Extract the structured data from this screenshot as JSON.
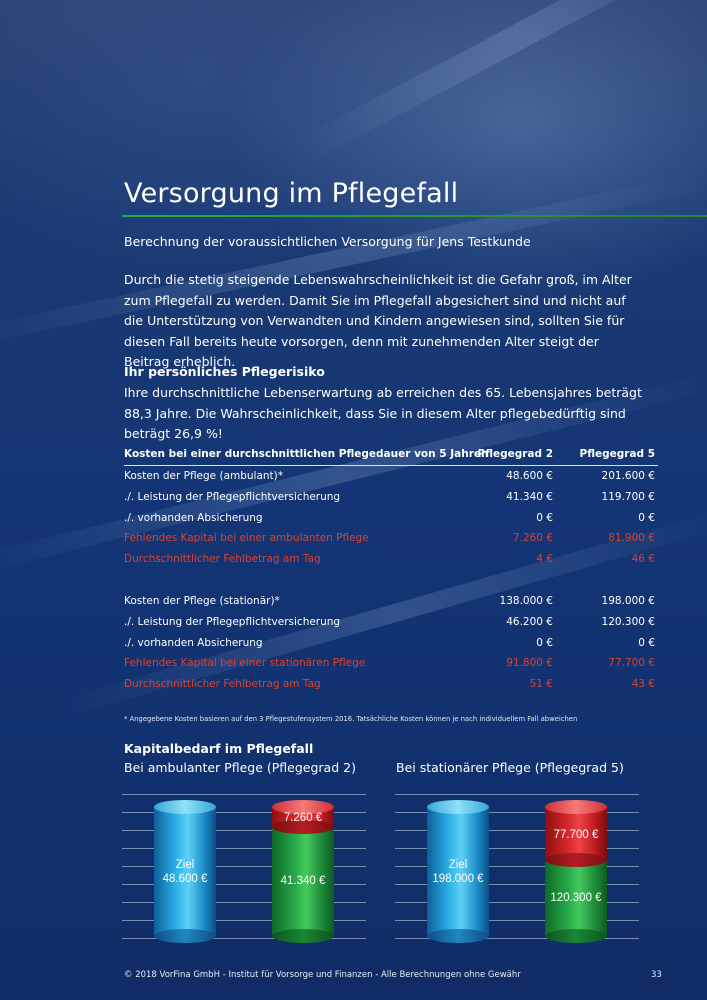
{
  "page": {
    "title": "Versorgung im Pflegefall",
    "subtitle": "Berechnung der voraussichtlichen Versorgung für Jens Testkunde",
    "intro": "Durch die stetig steigende Lebenswahrscheinlichkeit ist die Gefahr groß, im Alter zum Pflegefall zu werden. Damit Sie im Pflegefall abgesichert sind und nicht auf die Unterstützung von Verwandten und Kindern angewiesen sind, sollten Sie für diesen Fall bereits heute vorsorgen, denn mit zunehmenden Alter steigt der Beitrag erheblich."
  },
  "risk": {
    "heading": "Ihr persönliches Pflegerisiko",
    "text": "Ihre durchschnittliche Lebenserwartung ab erreichen des 65. Lebensjahres beträgt 88,3 Jahre. Die Wahrscheinlichkeit, dass Sie in diesem Alter pflegebedürftig sind beträgt 26,9 %!"
  },
  "table": {
    "header": {
      "label": "Kosten bei einer durchschnittlichen Pflegedauer von 5 Jahren",
      "col1": "Pflegegrad 2",
      "col2": "Pflegegrad 5"
    },
    "ambulant": [
      {
        "label": "Kosten der Pflege (ambulant)*",
        "v1": "48.600 €",
        "v2": "201.600 €"
      },
      {
        "label": "./. Leistung der Pflegepflichtversicherung",
        "v1": "41.340 €",
        "v2": "119.700 €"
      },
      {
        "label": "./. vorhanden Absicherung",
        "v1": "0 €",
        "v2": "0 €"
      },
      {
        "label": "Fehlendes Kapital bei einer ambulanten Pflege",
        "v1": "7.260 €",
        "v2": "81.900 €"
      },
      {
        "label": "Durchschnittlicher Fehlbetrag am Tag",
        "v1": "4 €",
        "v2": "46 €"
      }
    ],
    "stationaer": [
      {
        "label": "Kosten der Pflege (stationär)*",
        "v1": "138.000 €",
        "v2": "198.000 €"
      },
      {
        "label": "./. Leistung der Pflegepflichtversicherung",
        "v1": "46.200 €",
        "v2": "120.300 €"
      },
      {
        "label": "./. vorhanden Absicherung",
        "v1": "0 €",
        "v2": "0 €"
      },
      {
        "label": "Fehlendes Kapital bei einer stationären Pflege",
        "v1": "91.800 €",
        "v2": "77.700 €"
      },
      {
        "label": "Durchschnittlicher Fehlbetrag am Tag",
        "v1": "51 €",
        "v2": "43 €"
      }
    ],
    "red_color": "#d9432e",
    "footnote": "* Angegebene Kosten basieren auf den 3 Pflegestufensystem 2016. Tatsächliche Kosten können je nach individuellem Fall abweichen"
  },
  "kapital": {
    "heading": "Kapitalbedarf im Pflegefall"
  },
  "chart_data": [
    {
      "type": "bar",
      "title": "Bei ambulanter Pflege (Pflegegrad 2)",
      "ziel": {
        "label": "Ziel",
        "value": 48600,
        "text": "48.600 €"
      },
      "stack": [
        {
          "value": 41340,
          "text": "41.340 €",
          "color": "#25a546"
        },
        {
          "value": 7260,
          "text": "7.260 €",
          "color": "#d3252a"
        }
      ],
      "colors": {
        "ziel": "#2bb0e6"
      }
    },
    {
      "type": "bar",
      "title": "Bei stationärer Pflege (Pflegegrad 5)",
      "ziel": {
        "label": "Ziel",
        "value": 198000,
        "text": "198.000 €"
      },
      "stack": [
        {
          "value": 120300,
          "text": "120.300 €",
          "color": "#25a546"
        },
        {
          "value": 77700,
          "text": "77.700 €",
          "color": "#d3252a"
        }
      ],
      "colors": {
        "ziel": "#2bb0e6"
      }
    }
  ],
  "footer": {
    "copyright": "© 2018 VorFina GmbH - Institut für Vorsorge und Finanzen - Alle Berechnungen ohne Gewähr",
    "page_number": "33"
  }
}
